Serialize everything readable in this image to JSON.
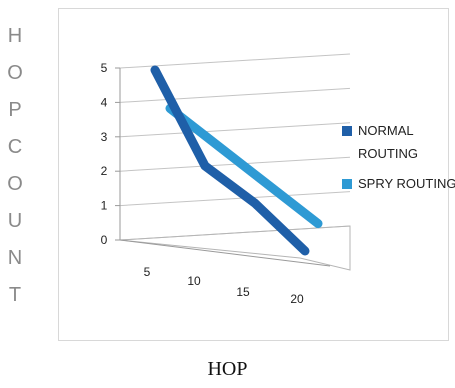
{
  "chart_data": {
    "type": "line",
    "style": "3d",
    "title": "",
    "xlabel": "HOP",
    "ylabel": "HOPCOUNT",
    "x": [
      5,
      10,
      15,
      20
    ],
    "ylim": [
      0,
      5
    ],
    "yticks": [
      0,
      1,
      2,
      3,
      4,
      5
    ],
    "grid": true,
    "legend": "right",
    "series": [
      {
        "name": "NORMAL ROUTING",
        "color": "#1f5fa8",
        "values": [
          5,
          2.3,
          1.3,
          0
        ]
      },
      {
        "name": "SPRY ROUTING",
        "color": "#2e9ad4",
        "values": [
          4,
          3,
          2,
          1
        ]
      }
    ]
  }
}
